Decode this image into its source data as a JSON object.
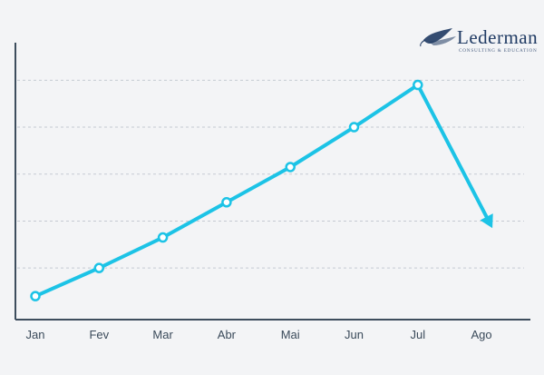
{
  "logo": {
    "name": "Lederman",
    "tagline": "Consulting & Education",
    "color": "#1f3a63"
  },
  "chart_data": {
    "type": "line",
    "title": "",
    "xlabel": "",
    "ylabel": "",
    "categories": [
      "Jan",
      "Fev",
      "Mar",
      "Abr",
      "Mai",
      "Jun",
      "Jul",
      "Ago"
    ],
    "series": [
      {
        "values": [
          0.4,
          1.0,
          1.65,
          2.4,
          3.15,
          4.0,
          4.9,
          null
        ],
        "color": "#1cc3e6"
      }
    ],
    "projection": {
      "from": "Jul",
      "to": "Ago",
      "value": 1.85,
      "style": "arrow"
    },
    "ylim": [
      -0.1,
      5.8
    ],
    "y_gridlines": [
      1,
      2,
      3,
      4,
      5
    ],
    "grid": true,
    "y_tick_labels_shown": false
  }
}
